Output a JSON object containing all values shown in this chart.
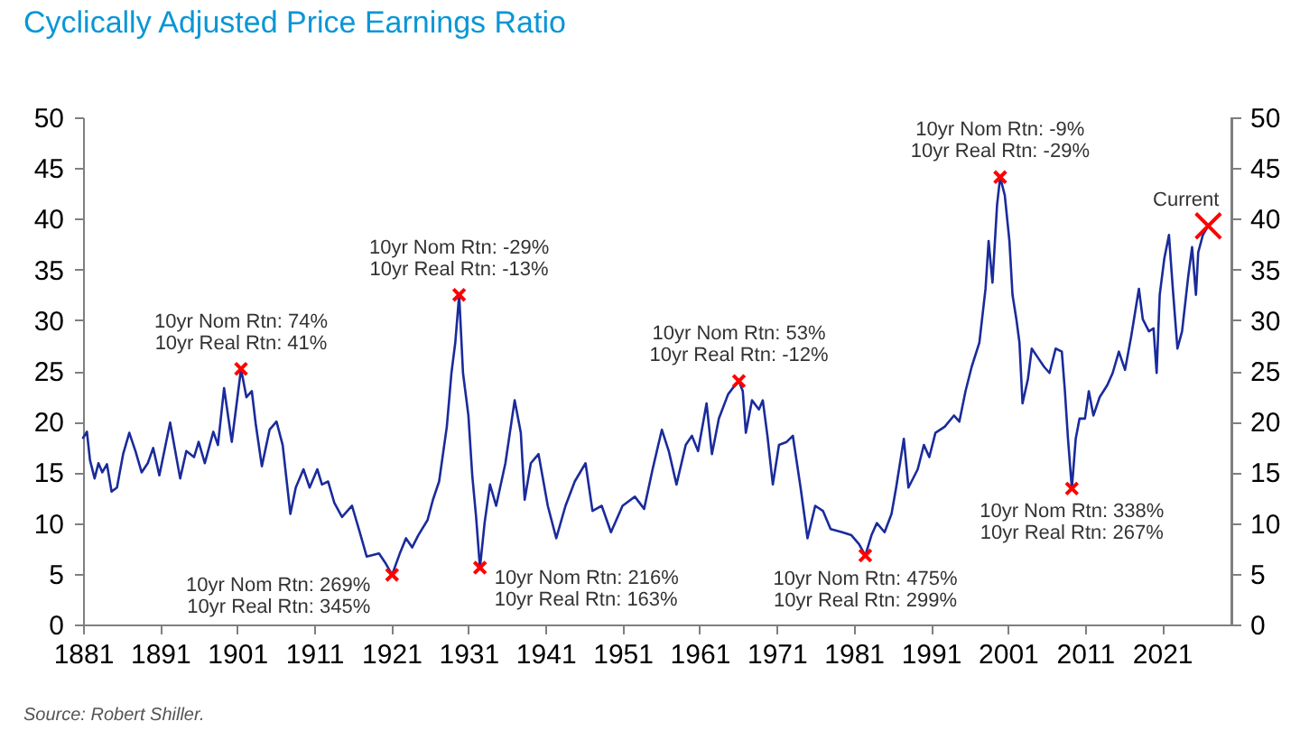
{
  "chart_data": {
    "type": "line",
    "title": "Cyclically Adjusted Price Earnings Ratio",
    "xlim": [
      1881,
      2030
    ],
    "xticks": [
      1881,
      1891,
      1901,
      1911,
      1921,
      1931,
      1941,
      1951,
      1961,
      1971,
      1981,
      1991,
      2001,
      2011,
      2021
    ],
    "ylim": [
      0,
      50
    ],
    "yticks": [
      0,
      5,
      10,
      15,
      20,
      25,
      30,
      35,
      40,
      45,
      50
    ],
    "y2lim": [
      0,
      50
    ],
    "y2ticks": [
      0,
      5,
      10,
      15,
      20,
      25,
      30,
      35,
      40,
      45,
      50
    ],
    "series": [
      {
        "color": "#1a2b9b",
        "line_style": "solid",
        "x": [
          1881.0,
          1881.5,
          1881.9,
          1882.5,
          1883.0,
          1883.5,
          1884.1,
          1884.7,
          1885.4,
          1886.2,
          1887.0,
          1887.8,
          1888.6,
          1889.4,
          1890.1,
          1890.9,
          1892.3,
          1893.6,
          1894.4,
          1895.4,
          1896.0,
          1896.8,
          1897.9,
          1898.5,
          1899.3,
          1900.3,
          1901.5,
          1902.2,
          1902.9,
          1903.4,
          1904.2,
          1905.2,
          1906.1,
          1906.9,
          1907.9,
          1908.6,
          1909.6,
          1910.4,
          1911.4,
          1912.0,
          1912.8,
          1913.6,
          1914.6,
          1915.9,
          1916.9,
          1917.8,
          1919.4,
          1920.2,
          1921.1,
          1922.1,
          1922.9,
          1923.7,
          1924.5,
          1925.7,
          1926.4,
          1927.2,
          1928.2,
          1928.8,
          1929.3,
          1929.8,
          1930.3,
          1931.0,
          1931.5,
          1932.0,
          1932.5,
          1933.1,
          1933.8,
          1934.6,
          1935.8,
          1937.0,
          1937.8,
          1938.3,
          1939.1,
          1940.1,
          1941.3,
          1942.4,
          1943.6,
          1944.8,
          1946.2,
          1947.1,
          1948.3,
          1949.5,
          1951.0,
          1952.6,
          1953.8,
          1954.9,
          1956.1,
          1957.0,
          1958.0,
          1959.2,
          1960.0,
          1960.8,
          1961.9,
          1962.6,
          1963.5,
          1964.7,
          1965.6,
          1966.1,
          1966.6,
          1967.0,
          1967.8,
          1968.7,
          1969.2,
          1969.8,
          1970.5,
          1971.3,
          1972.3,
          1973.1,
          1974.1,
          1975.0,
          1976.0,
          1977.0,
          1978.0,
          1979.5,
          1980.7,
          1981.7,
          1982.5,
          1983.3,
          1984.0,
          1985.0,
          1985.9,
          1986.5,
          1987.5,
          1988.1,
          1989.3,
          1990.1,
          1990.8,
          1991.6,
          1992.8,
          1994.0,
          1994.7,
          1995.5,
          1996.3,
          1997.3,
          1998.1,
          1998.5,
          1999.0,
          1999.6,
          2000.0,
          2000.6,
          2001.2,
          2001.6,
          2002.1,
          2002.5,
          2002.9,
          2003.6,
          2004.1,
          2004.9,
          2005.7,
          2006.4,
          2007.2,
          2008.0,
          2008.4,
          2008.8,
          2009.3,
          2009.8,
          2010.3,
          2011.0,
          2011.5,
          2012.1,
          2012.9,
          2013.9,
          2014.6,
          2015.4,
          2016.2,
          2017.0,
          2018.0,
          2018.5,
          2019.3,
          2019.9,
          2020.3,
          2020.7,
          2021.3,
          2021.9,
          2022.4,
          2023.0,
          2023.6,
          2024.4,
          2024.9,
          2025.4,
          2025.7,
          2026.3,
          2027.0
        ],
        "values": [
          18.4,
          19.0,
          16.2,
          14.4,
          15.9,
          15.0,
          15.8,
          13.1,
          13.5,
          16.8,
          18.9,
          17.1,
          15.0,
          15.9,
          17.4,
          14.7,
          19.9,
          14.4,
          17.1,
          16.5,
          18.0,
          15.9,
          19.0,
          17.7,
          23.3,
          18.0,
          25.2,
          22.4,
          23.0,
          19.8,
          15.6,
          19.2,
          20.0,
          17.7,
          10.9,
          13.5,
          15.3,
          13.5,
          15.3,
          13.8,
          14.1,
          12.0,
          10.6,
          11.7,
          9.1,
          6.7,
          7.0,
          6.1,
          4.9,
          7.0,
          8.5,
          7.6,
          8.8,
          10.3,
          12.3,
          14.1,
          19.5,
          24.8,
          27.8,
          32.5,
          24.8,
          20.6,
          14.7,
          10.6,
          5.6,
          10.0,
          13.8,
          11.7,
          15.9,
          22.1,
          18.9,
          12.3,
          15.9,
          16.8,
          11.7,
          8.5,
          11.7,
          14.1,
          15.9,
          11.2,
          11.7,
          9.1,
          11.7,
          12.6,
          11.4,
          15.3,
          19.2,
          17.1,
          13.8,
          17.7,
          18.6,
          17.1,
          21.8,
          16.8,
          20.3,
          22.7,
          23.6,
          24.0,
          23.0,
          18.9,
          22.1,
          21.2,
          22.1,
          18.6,
          13.8,
          17.7,
          18.0,
          18.6,
          13.5,
          8.5,
          11.7,
          11.2,
          9.4,
          9.1,
          8.8,
          7.9,
          6.8,
          8.8,
          10.0,
          9.1,
          10.9,
          13.5,
          18.3,
          13.5,
          15.3,
          17.7,
          16.5,
          18.9,
          19.5,
          20.6,
          20.0,
          23.0,
          25.4,
          27.8,
          33.1,
          37.8,
          33.7,
          41.4,
          44.1,
          42.3,
          37.8,
          32.5,
          30.1,
          27.8,
          21.8,
          24.2,
          27.2,
          26.3,
          25.4,
          24.8,
          27.2,
          26.9,
          23.0,
          18.3,
          13.4,
          18.3,
          20.3,
          20.3,
          23.0,
          20.6,
          22.4,
          23.6,
          24.8,
          26.9,
          25.1,
          28.4,
          33.1,
          30.1,
          28.9,
          29.2,
          24.8,
          32.5,
          36.1,
          38.4,
          33.1,
          27.2,
          28.9,
          34.3,
          37.2,
          32.5,
          36.7,
          38.4,
          39.3
        ]
      },
      {
        "type": "scatter",
        "color": "#ff0000",
        "marker": "cross",
        "x": [
          1901.5,
          1921.1,
          1929.8,
          1932.5,
          1966.1,
          1982.5,
          2000.0,
          2009.3
        ],
        "values": [
          25.2,
          4.9,
          32.5,
          5.6,
          24.0,
          6.8,
          44.1,
          13.4
        ]
      },
      {
        "type": "scatter",
        "color": "#ff0000",
        "marker": "cross",
        "x": [
          2027.0
        ],
        "values": [
          39.3
        ]
      }
    ],
    "annotations": [
      {
        "text": "10yr Nom Rtn: 74%\n10yr Real Rtn: 41%",
        "x": 1901.5,
        "y": 25.2
      },
      {
        "text": "10yr Nom Rtn: 269%\n10yr Real Rtn: 345%",
        "x": 1921.1,
        "y": 4.9
      },
      {
        "text": "10yr Nom Rtn: -29%\n10yr Real Rtn: -13%",
        "x": 1929.8,
        "y": 32.5
      },
      {
        "text": "10yr Nom Rtn: 216%\n10yr Real Rtn: 163%",
        "x": 1932.5,
        "y": 5.6
      },
      {
        "text": "10yr Nom Rtn: 53%\n10yr Real Rtn: -12%",
        "x": 1966.1,
        "y": 24.0
      },
      {
        "text": "10yr Nom Rtn: 475%\n10yr Real Rtn: 299%",
        "x": 1982.5,
        "y": 6.8
      },
      {
        "text": "10yr Nom Rtn: -9%\n10yr Real Rtn: -29%",
        "x": 2000.0,
        "y": 44.1
      },
      {
        "text": "10yr Nom Rtn: 338%\n10yr Real Rtn: 267%",
        "x": 2009.3,
        "y": 13.4
      },
      {
        "text": "Current",
        "x": 2027.0,
        "y": 39.3
      },
      "Source: Robert Shiller."
    ]
  }
}
